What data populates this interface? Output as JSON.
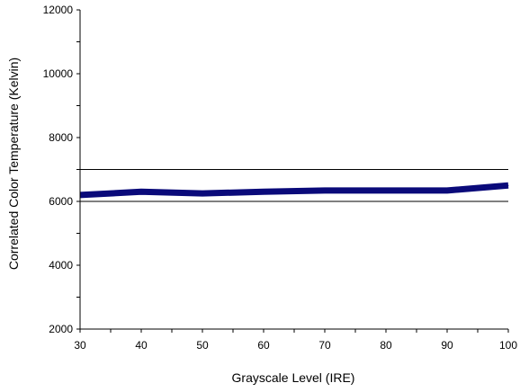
{
  "chart_data": {
    "type": "line",
    "title": "",
    "xlabel": "Grayscale Level (IRE)",
    "ylabel": "Correlated Color Temperature (Kelvin)",
    "xlim": [
      30,
      100
    ],
    "ylim": [
      2000,
      12000
    ],
    "x_ticks": [
      30,
      40,
      50,
      60,
      70,
      80,
      90,
      100
    ],
    "y_ticks": [
      2000,
      4000,
      6000,
      8000,
      10000,
      12000
    ],
    "grid": false,
    "legend": "none",
    "reference_lines": [
      {
        "y": 7000,
        "color": "#000000"
      },
      {
        "y": 6000,
        "color": "#000000"
      }
    ],
    "series": [
      {
        "color": "#0a0a7a",
        "x": [
          30,
          40,
          50,
          60,
          70,
          80,
          90,
          100
        ],
        "values": [
          6200,
          6300,
          6250,
          6300,
          6340,
          6340,
          6340,
          6500
        ]
      }
    ]
  }
}
